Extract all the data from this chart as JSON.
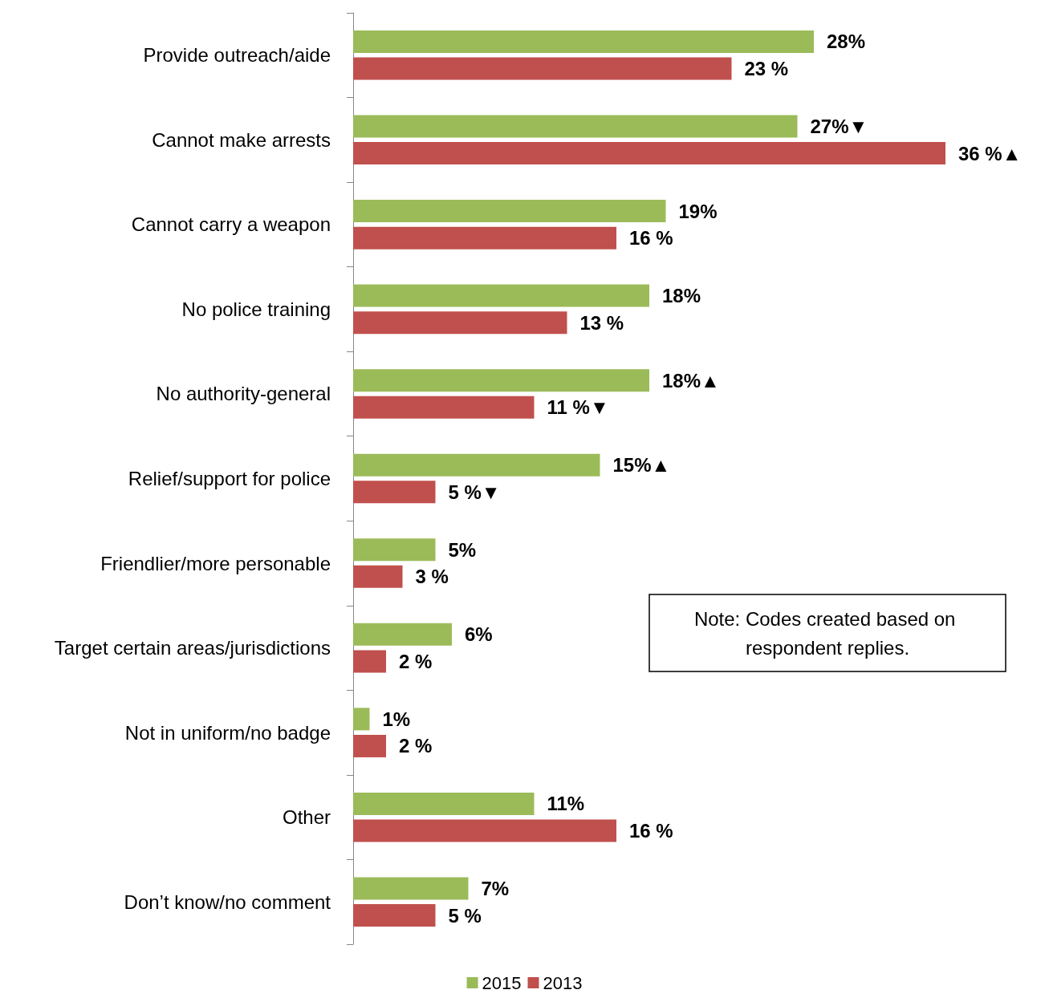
{
  "chart_data": {
    "type": "bar",
    "orientation": "horizontal",
    "categories": [
      "Provide outreach/aide",
      "Cannot make arrests",
      "Cannot carry a weapon",
      "No police training",
      "No authority-general",
      "Relief/support for police",
      "Friendlier/more personable",
      "Target certain areas/jurisdictions",
      "Not in uniform/no badge",
      "Other",
      "Don’t know/no comment"
    ],
    "series": [
      {
        "name": "2015",
        "color": "#9bbb59",
        "values": [
          28,
          27,
          19,
          18,
          18,
          15,
          5,
          6,
          1,
          11,
          7
        ],
        "value_labels": [
          "28%",
          "27%▼",
          "19%",
          "18%",
          "18%▲",
          "15%▲",
          "5%",
          "6%",
          "1%",
          "11%",
          "7%"
        ]
      },
      {
        "name": "2013",
        "color": "#c0504d",
        "values": [
          23,
          36,
          16,
          13,
          11,
          5,
          3,
          2,
          2,
          16,
          5
        ],
        "value_labels": [
          "23 %",
          "36 %▲",
          "16 %",
          "13 %",
          "11 %▼",
          "5 %▼",
          "3 %",
          "2 %",
          "2 %",
          "16 %",
          "5 %"
        ]
      }
    ],
    "legend": "bottom",
    "annotations": [
      "Note: Codes created based on respondent replies."
    ]
  }
}
